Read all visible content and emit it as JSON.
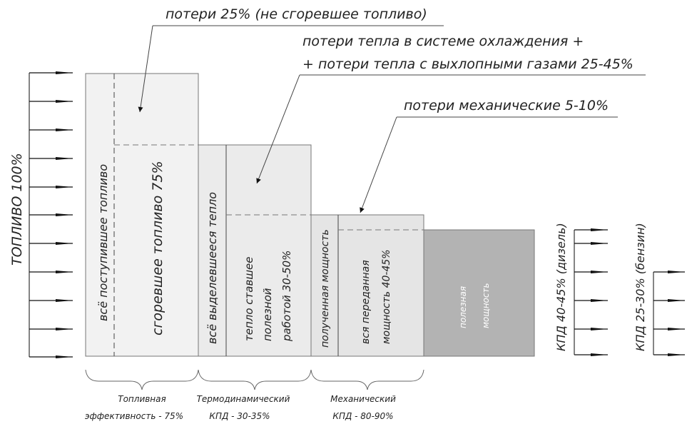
{
  "labels": {
    "fuel_total": "ТОПЛИВО 100%",
    "all_fuel": "всё поступившее топливо",
    "burned_fuel": "сгоревшее топливо 75%",
    "all_heat": "всё выделевшееся тепло",
    "heat_useful_1": "тепло ставшее",
    "heat_useful_2": "полезной",
    "heat_useful_3": "работой 30-50%",
    "received_power": "полученная мощность",
    "transmitted_1": "вся переданная",
    "transmitted_2": "мощность 40-45%",
    "useful_1": "полезная",
    "useful_2": "мощность",
    "kpd_diesel": "КПД 40-45% (дизель)",
    "kpd_petrol": "КПД 25-30% (бензин)"
  },
  "annotations": {
    "loss_unburned": "потери 25% (не сгоревшее топливо)",
    "loss_heat_1": "потери тепла в системе охлаждения +",
    "loss_heat_2": "+ потери тепла с выхлопными газами 25-45%",
    "loss_mech": "потери механические 5-10%"
  },
  "brackets": {
    "fuel_eff_1": "Топливная",
    "fuel_eff_2": "эффективность - 75%",
    "thermo_1": "Термодинамический",
    "thermo_2": "КПД - 30-35%",
    "mech_1": "Механический",
    "mech_2": "КПД - 80-90%"
  },
  "colors": {
    "box1": "#f2f2f2",
    "box2": "#ebebeb",
    "box3": "#e5e5e5",
    "useful": "#b3b3b3",
    "arrow": "#111111"
  }
}
